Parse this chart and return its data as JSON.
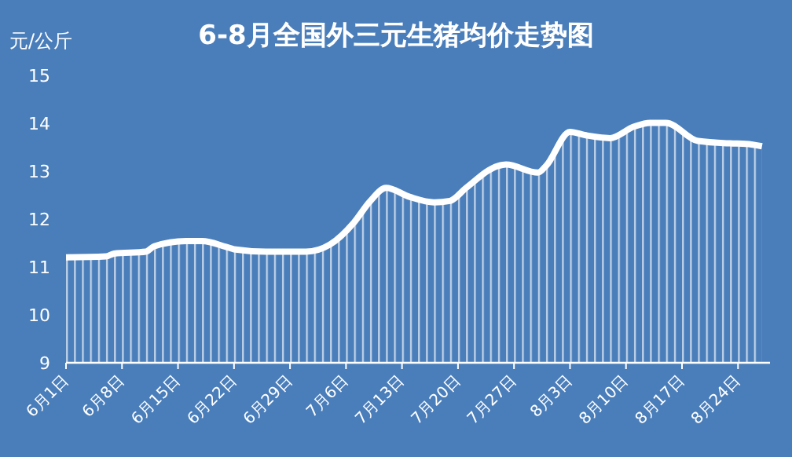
{
  "chart_data": {
    "type": "area",
    "title": "6-8月全国外三元生猪均价走势图",
    "ylabel": "元/公斤",
    "x": [
      "--06-01",
      "--06-06",
      "--06-07",
      "--06-11",
      "--06-12",
      "--06-16",
      "--06-18",
      "--06-21",
      "--06-22",
      "--06-26",
      "--07-01",
      "--07-04",
      "--07-07",
      "--07-09",
      "--07-11",
      "--07-14",
      "--07-17",
      "--07-19",
      "--07-21",
      "--07-25",
      "--07-26",
      "--07-30",
      "--07-31",
      "--08-03",
      "--08-05",
      "--08-08",
      "--08-11",
      "--08-13",
      "--08-15",
      "--08-19",
      "--08-23",
      "--08-25",
      "--08-27"
    ],
    "series": [
      {
        "color": "#ffffff",
        "values": [
          11.2,
          11.22,
          11.28,
          11.32,
          11.43,
          11.54,
          11.54,
          11.42,
          11.37,
          11.32,
          11.32,
          11.47,
          11.93,
          12.37,
          12.65,
          12.46,
          12.35,
          12.38,
          12.65,
          13.11,
          13.14,
          12.97,
          13.11,
          13.82,
          13.75,
          13.69,
          13.93,
          14.01,
          14.01,
          13.63,
          13.58,
          13.57,
          13.52
        ]
      }
    ],
    "xlim": [
      "--06-01",
      "--08-28"
    ],
    "xticks": [
      {
        "value": "--06-01",
        "label": "6月1日"
      },
      {
        "value": "--06-08",
        "label": "6月8日"
      },
      {
        "value": "--06-15",
        "label": "6月15日"
      },
      {
        "value": "--06-22",
        "label": "6月22日"
      },
      {
        "value": "--06-29",
        "label": "6月29日"
      },
      {
        "value": "--07-06",
        "label": "7月6日"
      },
      {
        "value": "--07-13",
        "label": "7月13日"
      },
      {
        "value": "--07-20",
        "label": "7月20日"
      },
      {
        "value": "--07-27",
        "label": "7月27日"
      },
      {
        "value": "--08-03",
        "label": "8月3日"
      },
      {
        "value": "--08-10",
        "label": "8月10日"
      },
      {
        "value": "--08-17",
        "label": "8月17日"
      },
      {
        "value": "--08-24",
        "label": "8月24日"
      }
    ],
    "ylim": [
      9,
      15
    ],
    "yticks": [
      9,
      10,
      11,
      12,
      13,
      14,
      15
    ],
    "grid": false,
    "marker": "none",
    "line_style": "solid"
  }
}
